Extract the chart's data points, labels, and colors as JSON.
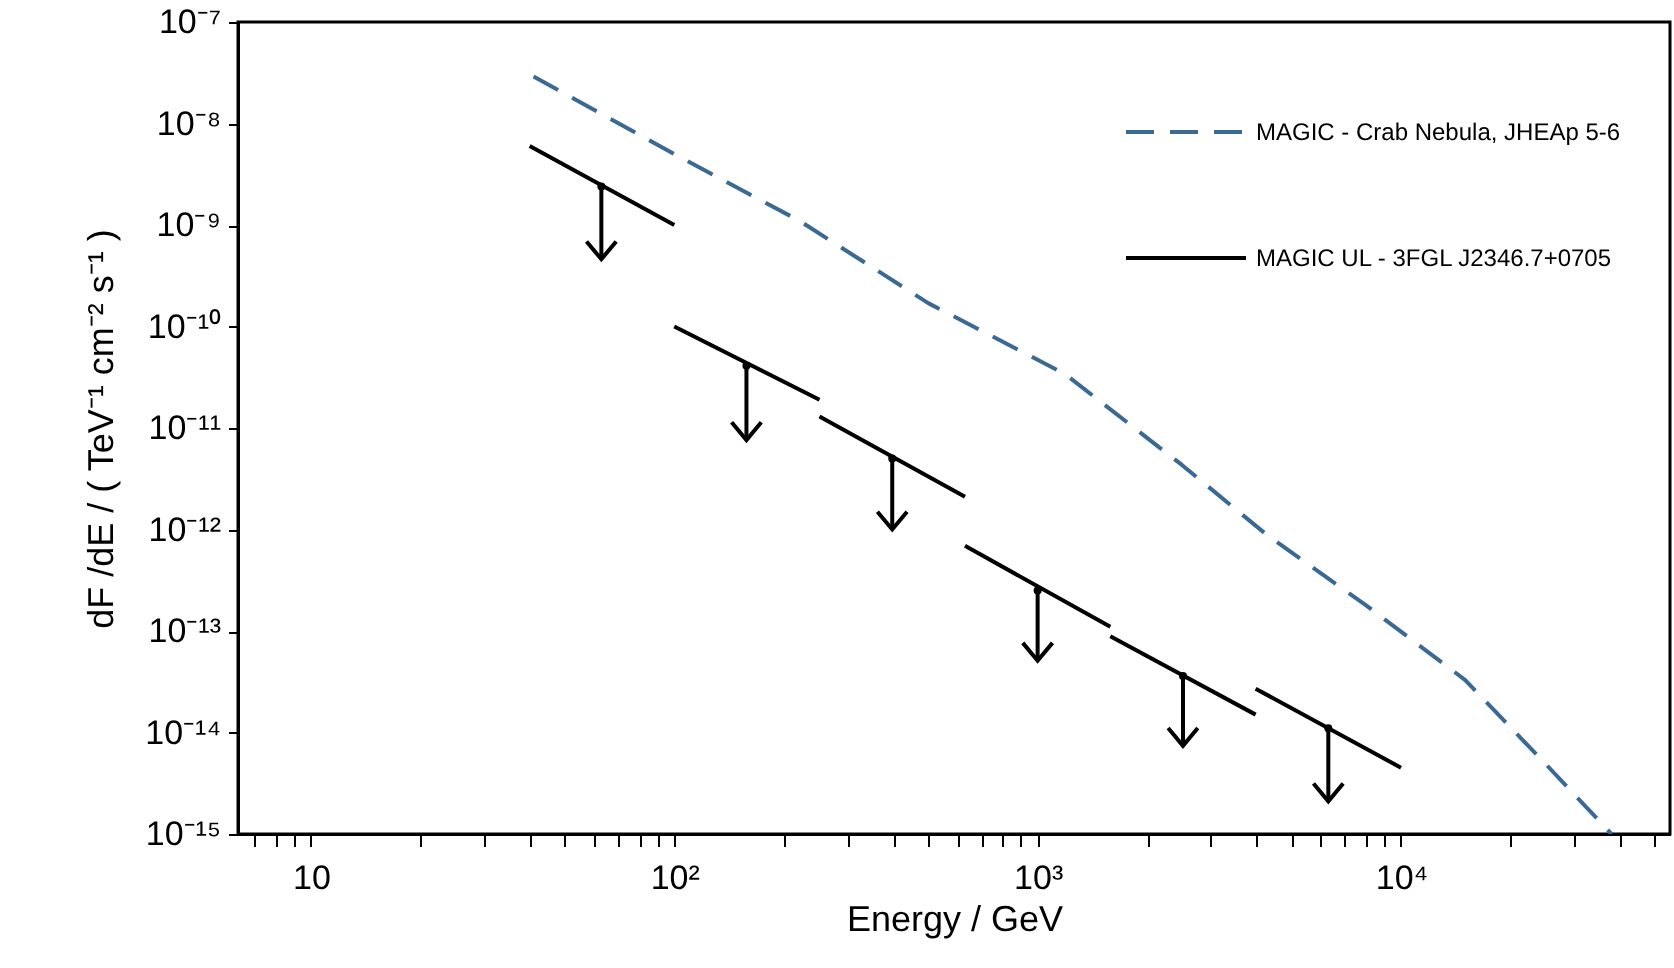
{
  "chart_data": {
    "type": "line",
    "xlabel": "Energy / GeV",
    "ylabel": "dF /dE / ( TeV⁻¹ cm⁻² s⁻¹ )",
    "log": "xy",
    "grid": false,
    "legend": "top right",
    "xlim": [
      6.3,
      55000
    ],
    "ylim": [
      1e-15,
      1e-07
    ],
    "xticks": [
      {
        "value": 7,
        "label": null
      },
      {
        "value": 8,
        "label": null
      },
      {
        "value": 9,
        "label": null
      },
      10,
      {
        "value": 20,
        "label": null
      },
      {
        "value": 30,
        "label": null
      },
      {
        "value": 40,
        "label": null
      },
      {
        "value": 50,
        "label": null
      },
      {
        "value": 60,
        "label": null
      },
      {
        "value": 70,
        "label": null
      },
      {
        "value": 80,
        "label": null
      },
      {
        "value": 90,
        "label": null
      },
      {
        "value": 100,
        "label": "10²"
      },
      {
        "value": 200,
        "label": null
      },
      {
        "value": 300,
        "label": null
      },
      {
        "value": 400,
        "label": null
      },
      {
        "value": 500,
        "label": null
      },
      {
        "value": 600,
        "label": null
      },
      {
        "value": 700,
        "label": null
      },
      {
        "value": 800,
        "label": null
      },
      {
        "value": 900,
        "label": null
      },
      {
        "value": 1000,
        "label": "10³"
      },
      {
        "value": 2000,
        "label": null
      },
      {
        "value": 3000,
        "label": null
      },
      {
        "value": 4000,
        "label": null
      },
      {
        "value": 5000,
        "label": null
      },
      {
        "value": 6000,
        "label": null
      },
      {
        "value": 7000,
        "label": null
      },
      {
        "value": 8000,
        "label": null
      },
      {
        "value": 9000,
        "label": null
      },
      {
        "value": 10000,
        "label": "10⁴"
      },
      {
        "value": 20000,
        "label": null
      },
      {
        "value": 30000,
        "label": null
      },
      {
        "value": 40000,
        "label": null
      },
      {
        "value": 50000,
        "label": null
      }
    ],
    "yticks": [
      {
        "value": 1e-15,
        "label": "10⁻¹⁵"
      },
      {
        "value": 1e-14,
        "label": "10⁻¹⁴"
      },
      {
        "value": 1e-13,
        "label": "10⁻¹³"
      },
      {
        "value": 1e-12,
        "label": "10⁻¹²"
      },
      {
        "value": 1e-11,
        "label": "10⁻¹¹"
      },
      {
        "value": 1e-10,
        "label": "10⁻¹⁰"
      },
      {
        "value": 1e-09,
        "label": "10⁻⁹"
      },
      {
        "value": 1e-08,
        "label": "10⁻⁸"
      },
      {
        "value": 1e-07,
        "label": "10⁻⁷"
      }
    ],
    "series": [
      {
        "name": "MAGIC - Crab Nebula, JHEAp 5-6",
        "type": "line",
        "line_style": "dashed",
        "color": "#3a6a93",
        "x": [
          41,
          100,
          221,
          284,
          500,
          1190,
          2500,
          4250,
          8000,
          15000,
          25000,
          38000
        ],
        "values": [
          2.9e-08,
          5e-09,
          1.1e-09,
          6.2e-10,
          1.7e-10,
          3.4e-11,
          4.3e-12,
          9e-13,
          1.8e-13,
          3.3e-14,
          4.9e-15,
          1e-15
        ]
      },
      {
        "name": "MAGIC UL - 3FGL J2346.7+0705",
        "type": "line",
        "line_style": "solid",
        "color": "#000000",
        "x": [
          40,
          100
        ],
        "values": [
          6e-09,
          1e-09
        ]
      },
      {
        "type": "line",
        "line_style": "solid",
        "color": "#000000",
        "x": [
          100,
          251
        ],
        "values": [
          1e-10,
          1.9e-11
        ]
      },
      {
        "type": "line",
        "line_style": "solid",
        "color": "#000000",
        "x": [
          251,
          631
        ],
        "values": [
          1.3e-11,
          2.1e-12
        ]
      },
      {
        "type": "line",
        "line_style": "solid",
        "color": "#000000",
        "x": [
          631,
          1585
        ],
        "values": [
          6.9e-13,
          1.1e-13
        ]
      },
      {
        "type": "line",
        "line_style": "solid",
        "color": "#000000",
        "x": [
          1585,
          3981
        ],
        "values": [
          8.9e-14,
          1.5e-14
        ]
      },
      {
        "type": "line",
        "line_style": "solid",
        "color": "#000000",
        "x": [
          3981,
          10000
        ],
        "values": [
          2.7e-14,
          4.5e-15
        ]
      },
      {
        "type": "scatter",
        "color": "#000000",
        "x": [
          63,
          158,
          398,
          1000,
          2512,
          6310
        ],
        "values": [
          2.4e-09,
          4.1e-11,
          5e-12,
          2.5e-13,
          3.6e-14,
          1.1e-14
        ],
        "errors": [
          [
            4.6e-10,
            2.4e-09
          ],
          [
            7.6e-12,
            4.1e-11
          ],
          [
            1e-12,
            5e-12
          ],
          [
            5.1e-14,
            2.5e-13
          ],
          [
            7.4e-15,
            3.6e-14
          ],
          [
            2.1e-15,
            1.1e-14
          ]
        ]
      }
    ]
  }
}
